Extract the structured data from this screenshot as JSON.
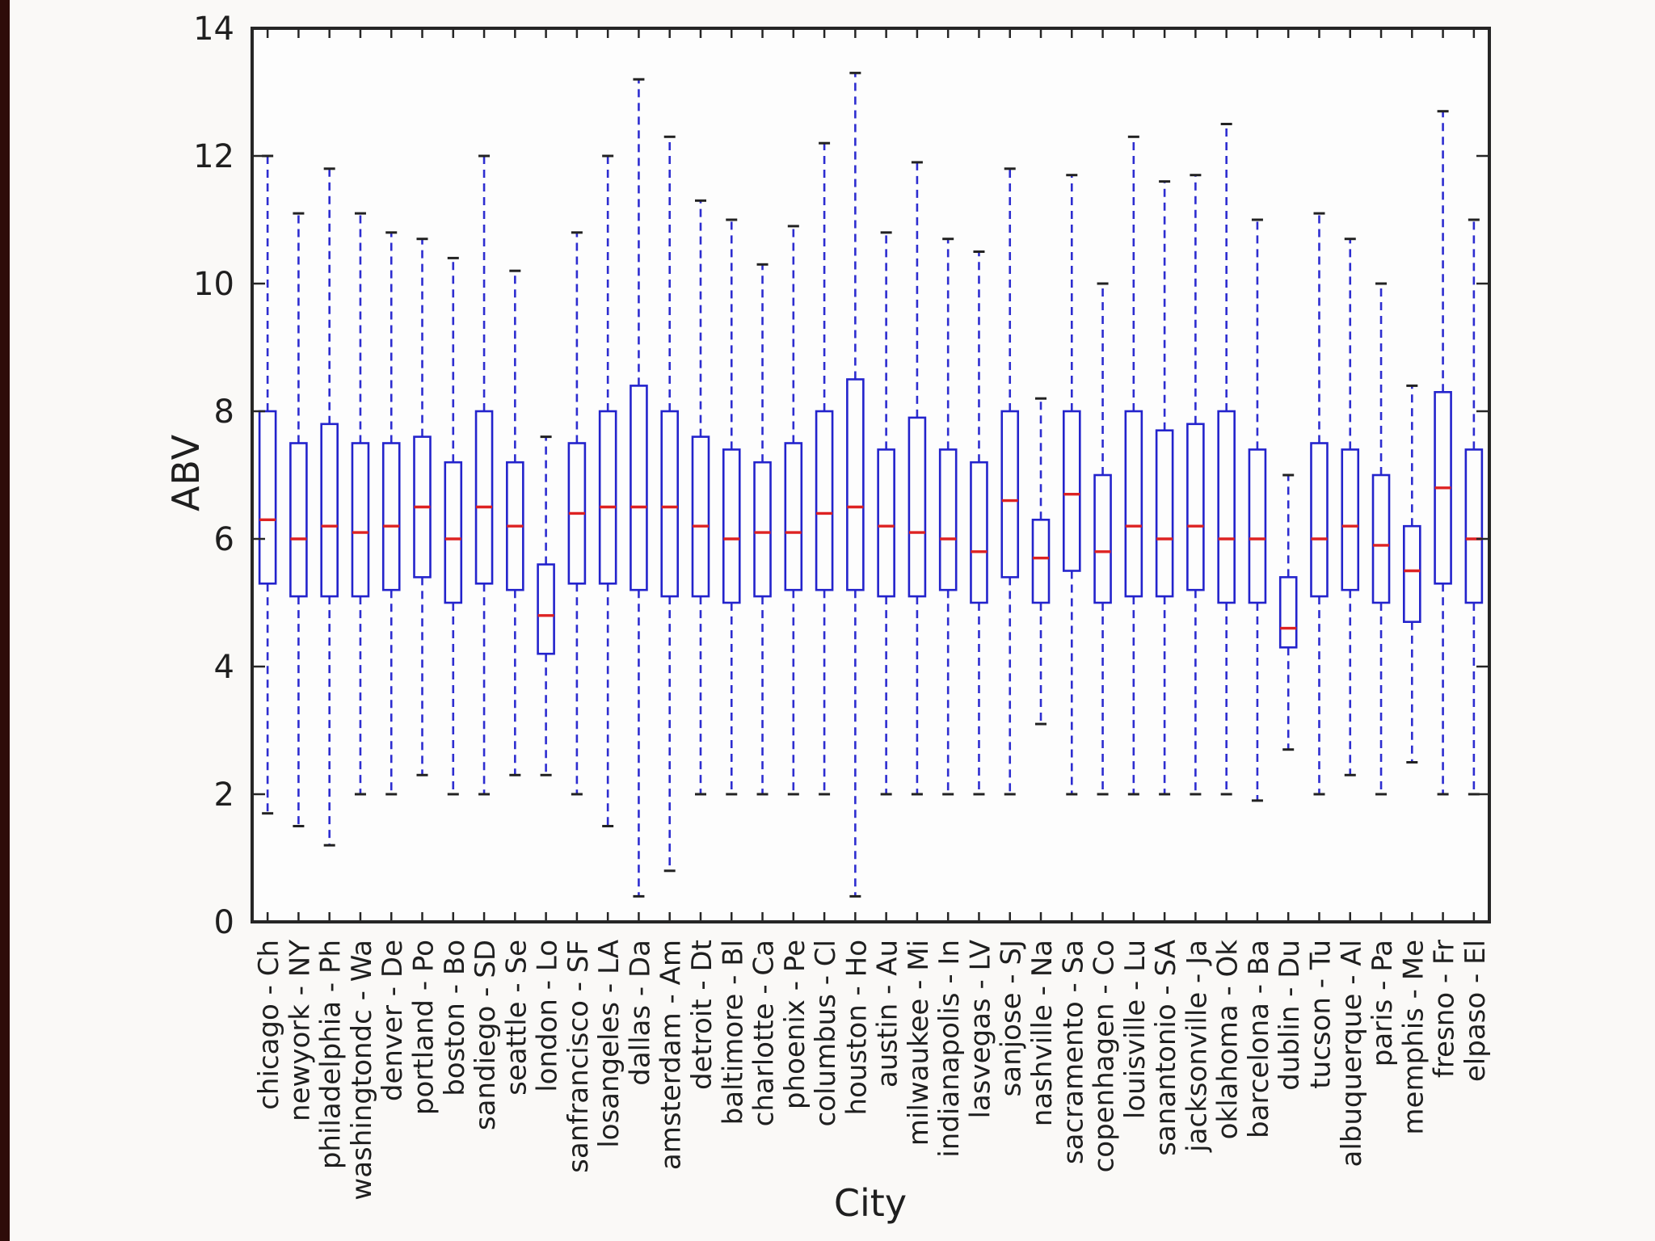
{
  "style": {
    "box_color": "#2323cc",
    "whisker_color": "#2d2dd0",
    "median_color": "#dd2222",
    "cap_color": "#222222",
    "spine_color": "#262626",
    "text_color": "#1f1f1f",
    "plot_background": "#fdfdfd",
    "page_background": "#faf9f7",
    "edge_strip_color": "#2e0c09"
  },
  "chart_data": {
    "type": "box",
    "title": "",
    "xlabel": "City",
    "ylabel": "ABV",
    "ylim": [
      0,
      14
    ],
    "yticks": [
      0,
      2,
      4,
      6,
      8,
      10,
      12,
      14
    ],
    "grid": false,
    "legend": "none",
    "categories": [
      "chicago - Ch",
      "newyork - NY",
      "philadelphia - Ph",
      "washingtondc - Wa",
      "denver - De",
      "portland - Po",
      "boston - Bo",
      "sandiego - SD",
      "seattle - Se",
      "london - Lo",
      "sanfrancisco - SF",
      "losangeles - LA",
      "dallas - Da",
      "amsterdam - Am",
      "detroit - Dt",
      "baltimore - Bl",
      "charlotte - Ca",
      "phoenix - Pe",
      "columbus - Cl",
      "houston - Ho",
      "austin - Au",
      "milwaukee - Mi",
      "indianapolis - In",
      "lasvegas - LV",
      "sanjose - SJ",
      "nashville - Na",
      "sacramento - Sa",
      "copenhagen - Co",
      "louisville - Lu",
      "sanantonio - SA",
      "jacksonville - Ja",
      "oklahoma - Ok",
      "barcelona - Ba",
      "dublin - Du",
      "tucson - Tu",
      "albuquerque - Al",
      "paris - Pa",
      "memphis - Me",
      "fresno - Fr",
      "elpaso - El"
    ],
    "boxes": [
      {
        "label": "chicago - Ch",
        "whisker_low": 1.7,
        "q1": 5.3,
        "median": 6.3,
        "q3": 8.0,
        "whisker_high": 12.0
      },
      {
        "label": "newyork - NY",
        "whisker_low": 1.5,
        "q1": 5.1,
        "median": 6.0,
        "q3": 7.5,
        "whisker_high": 11.1
      },
      {
        "label": "philadelphia - Ph",
        "whisker_low": 1.2,
        "q1": 5.1,
        "median": 6.2,
        "q3": 7.8,
        "whisker_high": 11.8
      },
      {
        "label": "washingtondc - Wa",
        "whisker_low": 2.0,
        "q1": 5.1,
        "median": 6.1,
        "q3": 7.5,
        "whisker_high": 11.1
      },
      {
        "label": "denver - De",
        "whisker_low": 2.0,
        "q1": 5.2,
        "median": 6.2,
        "q3": 7.5,
        "whisker_high": 10.8
      },
      {
        "label": "portland - Po",
        "whisker_low": 2.3,
        "q1": 5.4,
        "median": 6.5,
        "q3": 7.6,
        "whisker_high": 10.7
      },
      {
        "label": "boston - Bo",
        "whisker_low": 2.0,
        "q1": 5.0,
        "median": 6.0,
        "q3": 7.2,
        "whisker_high": 10.4
      },
      {
        "label": "sandiego - SD",
        "whisker_low": 2.0,
        "q1": 5.3,
        "median": 6.5,
        "q3": 8.0,
        "whisker_high": 12.0
      },
      {
        "label": "seattle - Se",
        "whisker_low": 2.3,
        "q1": 5.2,
        "median": 6.2,
        "q3": 7.2,
        "whisker_high": 10.2
      },
      {
        "label": "london - Lo",
        "whisker_low": 2.3,
        "q1": 4.2,
        "median": 4.8,
        "q3": 5.6,
        "whisker_high": 7.6
      },
      {
        "label": "sanfrancisco - SF",
        "whisker_low": 2.0,
        "q1": 5.3,
        "median": 6.4,
        "q3": 7.5,
        "whisker_high": 10.8
      },
      {
        "label": "losangeles - LA",
        "whisker_low": 1.5,
        "q1": 5.3,
        "median": 6.5,
        "q3": 8.0,
        "whisker_high": 12.0
      },
      {
        "label": "dallas - Da",
        "whisker_low": 0.4,
        "q1": 5.2,
        "median": 6.5,
        "q3": 8.4,
        "whisker_high": 13.2
      },
      {
        "label": "amsterdam - Am",
        "whisker_low": 0.8,
        "q1": 5.1,
        "median": 6.5,
        "q3": 8.0,
        "whisker_high": 12.3
      },
      {
        "label": "detroit - Dt",
        "whisker_low": 2.0,
        "q1": 5.1,
        "median": 6.2,
        "q3": 7.6,
        "whisker_high": 11.3
      },
      {
        "label": "baltimore - Bl",
        "whisker_low": 2.0,
        "q1": 5.0,
        "median": 6.0,
        "q3": 7.4,
        "whisker_high": 11.0
      },
      {
        "label": "charlotte - Ca",
        "whisker_low": 2.0,
        "q1": 5.1,
        "median": 6.1,
        "q3": 7.2,
        "whisker_high": 10.3
      },
      {
        "label": "phoenix - Pe",
        "whisker_low": 2.0,
        "q1": 5.2,
        "median": 6.1,
        "q3": 7.5,
        "whisker_high": 10.9
      },
      {
        "label": "columbus - Cl",
        "whisker_low": 2.0,
        "q1": 5.2,
        "median": 6.4,
        "q3": 8.0,
        "whisker_high": 12.2
      },
      {
        "label": "houston - Ho",
        "whisker_low": 0.4,
        "q1": 5.2,
        "median": 6.5,
        "q3": 8.5,
        "whisker_high": 13.3
      },
      {
        "label": "austin - Au",
        "whisker_low": 2.0,
        "q1": 5.1,
        "median": 6.2,
        "q3": 7.4,
        "whisker_high": 10.8
      },
      {
        "label": "milwaukee - Mi",
        "whisker_low": 2.0,
        "q1": 5.1,
        "median": 6.1,
        "q3": 7.9,
        "whisker_high": 11.9
      },
      {
        "label": "indianapolis - In",
        "whisker_low": 2.0,
        "q1": 5.2,
        "median": 6.0,
        "q3": 7.4,
        "whisker_high": 10.7
      },
      {
        "label": "lasvegas - LV",
        "whisker_low": 2.0,
        "q1": 5.0,
        "median": 5.8,
        "q3": 7.2,
        "whisker_high": 10.5
      },
      {
        "label": "sanjose - SJ",
        "whisker_low": 2.0,
        "q1": 5.4,
        "median": 6.6,
        "q3": 8.0,
        "whisker_high": 11.8
      },
      {
        "label": "nashville - Na",
        "whisker_low": 3.1,
        "q1": 5.0,
        "median": 5.7,
        "q3": 6.3,
        "whisker_high": 8.2
      },
      {
        "label": "sacramento - Sa",
        "whisker_low": 2.0,
        "q1": 5.5,
        "median": 6.7,
        "q3": 8.0,
        "whisker_high": 11.7
      },
      {
        "label": "copenhagen - Co",
        "whisker_low": 2.0,
        "q1": 5.0,
        "median": 5.8,
        "q3": 7.0,
        "whisker_high": 10.0
      },
      {
        "label": "louisville - Lu",
        "whisker_low": 2.0,
        "q1": 5.1,
        "median": 6.2,
        "q3": 8.0,
        "whisker_high": 12.3
      },
      {
        "label": "sanantonio - SA",
        "whisker_low": 2.0,
        "q1": 5.1,
        "median": 6.0,
        "q3": 7.7,
        "whisker_high": 11.6
      },
      {
        "label": "jacksonville - Ja",
        "whisker_low": 2.0,
        "q1": 5.2,
        "median": 6.2,
        "q3": 7.8,
        "whisker_high": 11.7
      },
      {
        "label": "oklahoma - Ok",
        "whisker_low": 2.0,
        "q1": 5.0,
        "median": 6.0,
        "q3": 8.0,
        "whisker_high": 12.5
      },
      {
        "label": "barcelona - Ba",
        "whisker_low": 1.9,
        "q1": 5.0,
        "median": 6.0,
        "q3": 7.4,
        "whisker_high": 11.0
      },
      {
        "label": "dublin - Du",
        "whisker_low": 2.7,
        "q1": 4.3,
        "median": 4.6,
        "q3": 5.4,
        "whisker_high": 7.0
      },
      {
        "label": "tucson - Tu",
        "whisker_low": 2.0,
        "q1": 5.1,
        "median": 6.0,
        "q3": 7.5,
        "whisker_high": 11.1
      },
      {
        "label": "albuquerque - Al",
        "whisker_low": 2.3,
        "q1": 5.2,
        "median": 6.2,
        "q3": 7.4,
        "whisker_high": 10.7
      },
      {
        "label": "paris - Pa",
        "whisker_low": 2.0,
        "q1": 5.0,
        "median": 5.9,
        "q3": 7.0,
        "whisker_high": 10.0
      },
      {
        "label": "memphis - Me",
        "whisker_low": 2.5,
        "q1": 4.7,
        "median": 5.5,
        "q3": 6.2,
        "whisker_high": 8.4
      },
      {
        "label": "fresno - Fr",
        "whisker_low": 2.0,
        "q1": 5.3,
        "median": 6.8,
        "q3": 8.3,
        "whisker_high": 12.7
      },
      {
        "label": "elpaso - El",
        "whisker_low": 2.0,
        "q1": 5.0,
        "median": 6.0,
        "q3": 7.4,
        "whisker_high": 11.0
      }
    ]
  }
}
